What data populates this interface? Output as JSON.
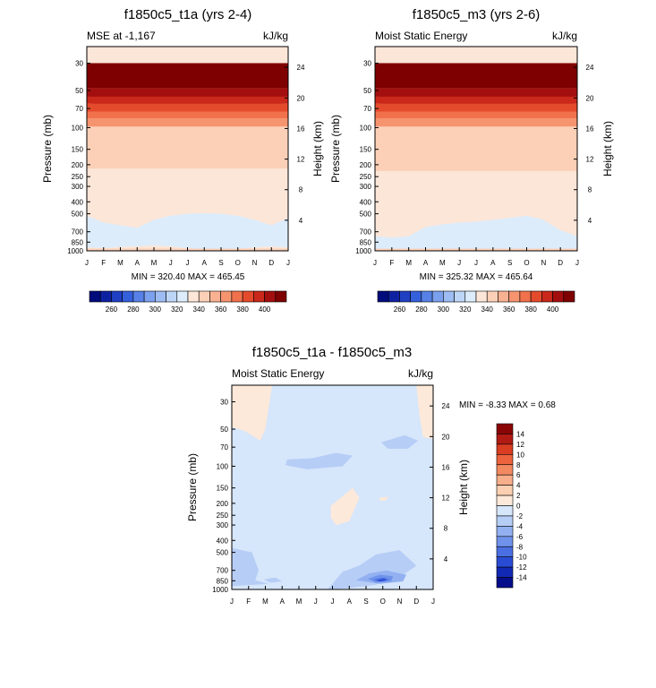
{
  "palette": {
    "warm": [
      "#fce6d8",
      "#fbd0b7",
      "#f8b292",
      "#f5946f",
      "#f1714c",
      "#e44b2c",
      "#c9281a",
      "#a30f0e",
      "#7e0000"
    ],
    "cool": [
      "#dcecfb",
      "#bdd6f7",
      "#9dbcf3",
      "#7ba0ee",
      "#5781e6",
      "#3560dc",
      "#1f40c3",
      "#0e22a1",
      "#000c7c"
    ],
    "diff_warm": [
      "#fde9d9",
      "#fbcfb2",
      "#f7ae8a",
      "#f28961",
      "#ec633e",
      "#d93d22",
      "#b21b14",
      "#8a0606"
    ],
    "diff_cool": [
      "#d6e6fb",
      "#b6cdf6",
      "#93b1f1",
      "#6f92ea",
      "#4a6fe2",
      "#2a4cd5",
      "#1229b5",
      "#040e8a"
    ],
    "ice": "#e6f0fb"
  },
  "chart_data": [
    {
      "type": "contour",
      "title": "f1850c5_t1a (yrs 2-4)",
      "left_label": "MSE at -1,167",
      "units": "kJ/kg",
      "ylabel": "Pressure (mb)",
      "ylabel_right": "Height (km)",
      "x_ticks": [
        "J",
        "F",
        "M",
        "A",
        "M",
        "J",
        "J",
        "A",
        "S",
        "O",
        "N",
        "D",
        "J"
      ],
      "p_ticks": [
        "30",
        "50",
        "70",
        "100",
        "150",
        "200",
        "250",
        "300",
        "400",
        "500",
        "700",
        "850",
        "1000"
      ],
      "p_values": [
        30,
        50,
        70,
        100,
        150,
        200,
        250,
        300,
        400,
        500,
        700,
        850,
        1000
      ],
      "height_ticks": [
        "24",
        "20",
        "16",
        "12",
        "8",
        "4"
      ],
      "height_values": [
        24,
        20,
        16,
        12,
        8,
        4
      ],
      "min_max": "MIN = 320.40 MAX = 465.45",
      "colorbar_labels": [
        "260",
        "280",
        "300",
        "320",
        "340",
        "360",
        "380",
        "400"
      ],
      "bands_mb": [
        [
          30,
          48,
          "#7e0000"
        ],
        [
          48,
          56,
          "#a30f0e"
        ],
        [
          56,
          64,
          "#c9281a"
        ],
        [
          64,
          74,
          "#e44b2c"
        ],
        [
          74,
          84,
          "#f1714c"
        ],
        [
          84,
          98,
          "#f5946f"
        ],
        [
          98,
          215,
          "#fbd0b7"
        ],
        [
          215,
          520,
          "#fce6d8"
        ]
      ],
      "wave_mb": [
        [
          520,
          590,
          620,
          650,
          560,
          520,
          500,
          495,
          500,
          520,
          560,
          620,
          540
        ],
        [
          940,
          950,
          930,
          920,
          900,
          920,
          950,
          980,
          980,
          960,
          940,
          920,
          940
        ]
      ]
    },
    {
      "type": "contour",
      "title": "f1850c5_m3 (yrs 2-6)",
      "left_label": "Moist Static Energy",
      "units": "kJ/kg",
      "ylabel": "Pressure (mb)",
      "ylabel_right": "Height (km)",
      "x_ticks": [
        "J",
        "F",
        "M",
        "A",
        "M",
        "J",
        "J",
        "A",
        "S",
        "O",
        "N",
        "D",
        "J"
      ],
      "p_ticks": [
        "30",
        "50",
        "70",
        "100",
        "150",
        "200",
        "250",
        "300",
        "400",
        "500",
        "700",
        "850",
        "1000"
      ],
      "p_values": [
        30,
        50,
        70,
        100,
        150,
        200,
        250,
        300,
        400,
        500,
        700,
        850,
        1000
      ],
      "height_ticks": [
        "24",
        "20",
        "16",
        "12",
        "8",
        "4"
      ],
      "height_values": [
        24,
        20,
        16,
        12,
        8,
        4
      ],
      "min_max": "MIN = 325.32 MAX = 465.64",
      "colorbar_labels": [
        "260",
        "280",
        "300",
        "320",
        "340",
        "360",
        "380",
        "400"
      ],
      "bands_mb": [
        [
          30,
          48,
          "#7e0000"
        ],
        [
          48,
          56,
          "#a30f0e"
        ],
        [
          56,
          64,
          "#c9281a"
        ],
        [
          64,
          74,
          "#e44b2c"
        ],
        [
          74,
          84,
          "#f1714c"
        ],
        [
          84,
          98,
          "#f5946f"
        ],
        [
          98,
          225,
          "#fbd0b7"
        ],
        [
          225,
          680,
          "#fce6d8"
        ]
      ],
      "wave_mb": [
        [
          760,
          780,
          760,
          640,
          610,
          590,
          580,
          560,
          540,
          520,
          560,
          680,
          760
        ],
        [
          960,
          960,
          960,
          960,
          960,
          960,
          960,
          960,
          960,
          960,
          960,
          960,
          960
        ]
      ]
    },
    {
      "type": "contour",
      "title": "f1850c5_t1a - f1850c5_m3",
      "left_label": "Moist Static Energy",
      "units": "kJ/kg",
      "ylabel": "Pressure (mb)",
      "ylabel_right": "Height (km)",
      "x_ticks": [
        "J",
        "F",
        "M",
        "A",
        "M",
        "J",
        "J",
        "A",
        "S",
        "O",
        "N",
        "D",
        "J"
      ],
      "p_ticks": [
        "30",
        "50",
        "70",
        "100",
        "150",
        "200",
        "250",
        "300",
        "400",
        "500",
        "700",
        "850",
        "1000"
      ],
      "p_values": [
        30,
        50,
        70,
        100,
        150,
        200,
        250,
        300,
        400,
        500,
        700,
        850,
        1000
      ],
      "height_ticks": [
        "24",
        "20",
        "16",
        "12",
        "8",
        "4"
      ],
      "height_values": [
        24,
        20,
        16,
        12,
        8,
        4
      ],
      "min_max": "MIN =  -8.33 MAX =   0.68",
      "colorbar_labels": [
        "14",
        "12",
        "10",
        "8",
        "6",
        "4",
        "2",
        "0",
        "-2",
        "-4",
        "-6",
        "-8",
        "-10",
        "-12",
        "-14"
      ]
    }
  ]
}
